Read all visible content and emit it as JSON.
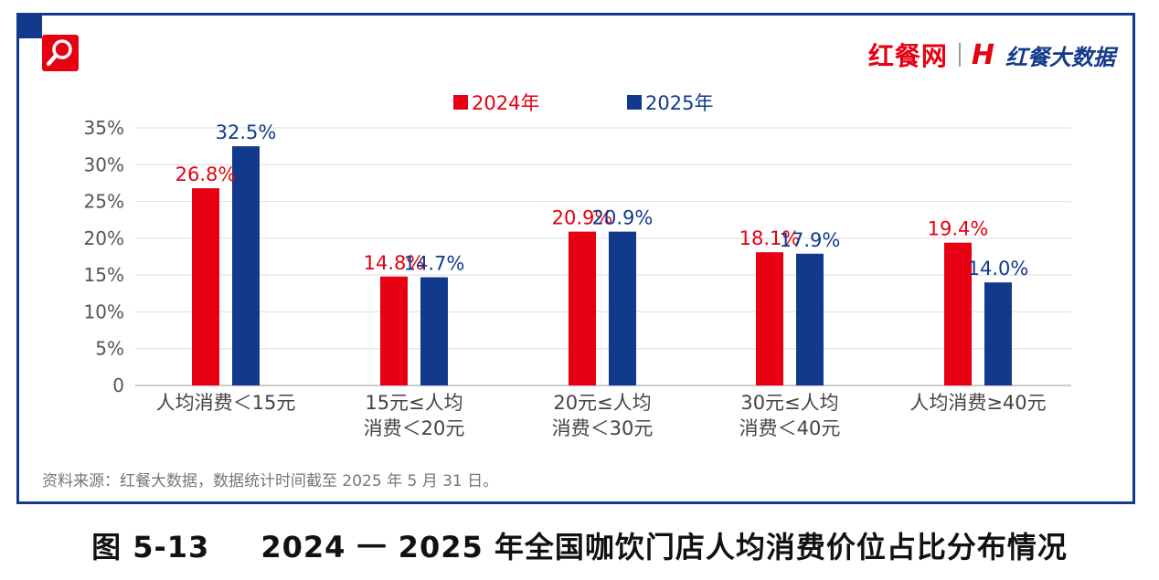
{
  "brand": {
    "left": "红餐网",
    "right": "红餐大数据",
    "logo_mark": "H"
  },
  "icons": [
    "magnifier-icon"
  ],
  "colors": {
    "series_2024": "#e60012",
    "series_2025": "#123a8c",
    "frame": "#123a8c"
  },
  "source_note": "资料来源：红餐大数据，数据统计时间截至 2025 年 5 月 31 日。",
  "caption": {
    "figure_number": "图 5-13",
    "title": "2024 一 2025 年全国咖饮门店人均消费价位占比分布情况"
  },
  "chart_data": {
    "type": "bar",
    "categories": [
      [
        "人均消费＜15元"
      ],
      [
        "15元≤人均",
        "消费＜20元"
      ],
      [
        "20元≤人均",
        "消费＜30元"
      ],
      [
        "30元≤人均",
        "消费＜40元"
      ],
      [
        "人均消费≥40元"
      ]
    ],
    "series": [
      {
        "name": "2024年",
        "values": [
          26.8,
          14.8,
          20.9,
          18.1,
          19.4
        ],
        "labels": [
          "26.8%",
          "14.8%",
          "20.9%",
          "18.1%",
          "19.4%"
        ]
      },
      {
        "name": "2025年",
        "values": [
          32.5,
          14.7,
          20.9,
          17.9,
          14.0
        ],
        "labels": [
          "32.5%",
          "14.7%",
          "20.9%",
          "17.9%",
          "14.0%"
        ]
      }
    ],
    "yticks": [
      0,
      5,
      10,
      15,
      20,
      25,
      30,
      35
    ],
    "ytick_labels": [
      "0",
      "5%",
      "10%",
      "15%",
      "20%",
      "25%",
      "30%",
      "35%"
    ],
    "ylim": [
      0,
      35
    ],
    "grid": true,
    "legend_position": "top-center"
  }
}
